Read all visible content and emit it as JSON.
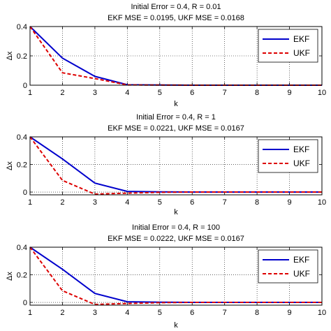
{
  "chart_data": [
    {
      "type": "line",
      "title": "Initial Error = 0.4, R = 0.01",
      "subtitle": "EKF MSE = 0.0195, UKF MSE = 0.0168",
      "xlabel": "k",
      "ylabel": "Δx",
      "x": [
        1,
        2,
        3,
        4,
        5,
        6,
        7,
        8,
        9,
        10
      ],
      "xlim": [
        1,
        10
      ],
      "ylim": [
        0,
        0.4
      ],
      "xticks": [
        "1",
        "2",
        "3",
        "4",
        "5",
        "6",
        "7",
        "8",
        "9",
        "10"
      ],
      "yticks": [
        "0",
        "0.2",
        "0.4"
      ],
      "grid": true,
      "legend_position": "top-right",
      "series": [
        {
          "name": "EKF",
          "color": "#0000cc",
          "style": "solid",
          "values": [
            0.4,
            0.185,
            0.06,
            0.003,
            0.001,
            0,
            0,
            0,
            0,
            0
          ]
        },
        {
          "name": "UKF",
          "color": "#dd0000",
          "style": "dashed",
          "values": [
            0.4,
            0.085,
            0.045,
            0.002,
            0.001,
            0,
            0,
            0,
            0,
            0
          ]
        }
      ]
    },
    {
      "type": "line",
      "title": "Initial Error = 0.4, R = 1",
      "subtitle": "EKF MSE = 0.0221, UKF MSE = 0.0167",
      "xlabel": "k",
      "ylabel": "Δx",
      "x": [
        1,
        2,
        3,
        4,
        5,
        6,
        7,
        8,
        9,
        10
      ],
      "xlim": [
        1,
        10
      ],
      "ylim": [
        -0.02,
        0.4
      ],
      "xticks": [
        "1",
        "2",
        "3",
        "4",
        "5",
        "6",
        "7",
        "8",
        "9",
        "10"
      ],
      "yticks": [
        "0",
        "0.2",
        "0.4"
      ],
      "grid": true,
      "legend_position": "top-right",
      "series": [
        {
          "name": "EKF",
          "color": "#0000cc",
          "style": "solid",
          "values": [
            0.4,
            0.24,
            0.065,
            0.005,
            0.002,
            0,
            0,
            0,
            0,
            0
          ]
        },
        {
          "name": "UKF",
          "color": "#dd0000",
          "style": "dashed",
          "values": [
            0.4,
            0.085,
            -0.015,
            -0.008,
            -0.002,
            0,
            0,
            0,
            0,
            0
          ]
        }
      ]
    },
    {
      "type": "line",
      "title": "Initial Error = 0.4, R = 100",
      "subtitle": "EKF MSE = 0.0222, UKF MSE = 0.0167",
      "xlabel": "k",
      "ylabel": "Δx",
      "x": [
        1,
        2,
        3,
        4,
        5,
        6,
        7,
        8,
        9,
        10
      ],
      "xlim": [
        1,
        10
      ],
      "ylim": [
        -0.02,
        0.4
      ],
      "xticks": [
        "1",
        "2",
        "3",
        "4",
        "5",
        "6",
        "7",
        "8",
        "9",
        "10"
      ],
      "yticks": [
        "0",
        "0.2",
        "0.4"
      ],
      "grid": true,
      "legend_position": "top-right",
      "series": [
        {
          "name": "EKF",
          "color": "#0000cc",
          "style": "solid",
          "values": [
            0.4,
            0.24,
            0.065,
            0.005,
            0.002,
            0,
            0,
            0,
            0,
            0
          ]
        },
        {
          "name": "UKF",
          "color": "#dd0000",
          "style": "dashed",
          "values": [
            0.4,
            0.085,
            -0.015,
            -0.008,
            -0.002,
            0,
            0,
            0,
            0,
            0
          ]
        }
      ]
    }
  ]
}
